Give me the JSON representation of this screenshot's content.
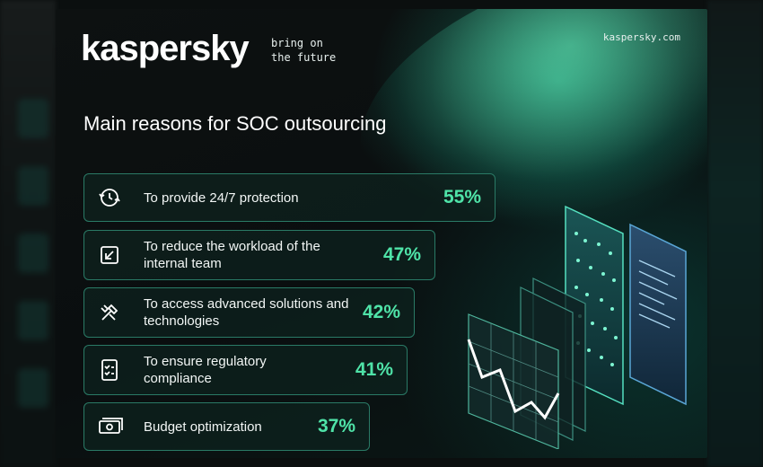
{
  "brand": {
    "logo": "kaspersky",
    "tagline": "bring on\nthe future",
    "website": "kaspersky.com"
  },
  "heading": "Main reasons for SOC outsourcing",
  "reasons": [
    {
      "label": "To provide 24/7 protection",
      "percent": "55%",
      "icon": "clock-shield-icon"
    },
    {
      "label": "To reduce the workload of the internal team",
      "percent": "47%",
      "icon": "checkbox-arrow-icon"
    },
    {
      "label": "To access advanced solutions and technologies",
      "percent": "42%",
      "icon": "tools-icon"
    },
    {
      "label": "To ensure regulatory compliance",
      "percent": "41%",
      "icon": "checklist-document-icon"
    },
    {
      "label": "Budget optimization",
      "percent": "37%",
      "icon": "money-icon"
    }
  ],
  "colors": {
    "accent": "#4fe3a8",
    "border": "#2a7a66",
    "background": "#0a0e0f"
  }
}
